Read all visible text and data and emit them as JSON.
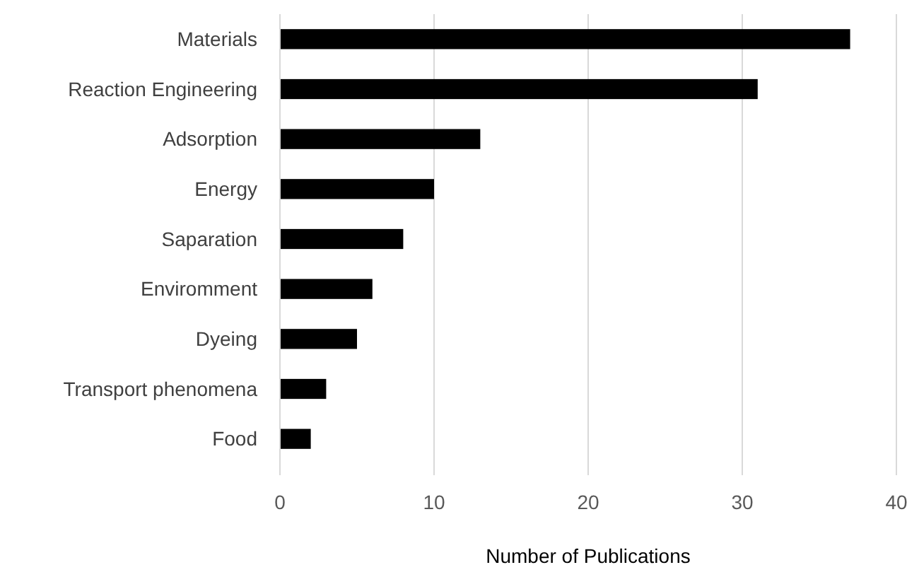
{
  "chart_data": {
    "type": "bar",
    "orientation": "horizontal",
    "xlabel": "Number of Publications",
    "categories": [
      "Materials",
      "Reaction Engineering",
      "Adsorption",
      "Energy",
      "Saparation",
      "Enviromment",
      "Dyeing",
      "Transport phenomena",
      "Food"
    ],
    "values": [
      37,
      31,
      13,
      10,
      8,
      6,
      5,
      3,
      2
    ],
    "color": "#000000",
    "xlim": [
      0,
      40
    ],
    "xticks": [
      0,
      10,
      20,
      30,
      40
    ],
    "grid": "x"
  }
}
